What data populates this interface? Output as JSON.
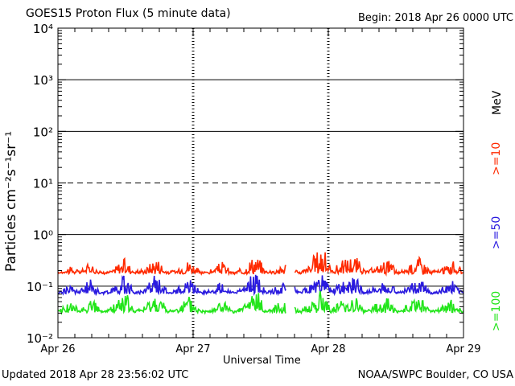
{
  "header": {
    "title": "GOES15 Proton Flux (5 minute data)",
    "begin": "Begin: 2018 Apr 26 0000 UTC"
  },
  "footer": {
    "updated": "Updated 2018 Apr 28 23:56:02 UTC",
    "credit": "NOAA/SWPC Boulder, CO USA"
  },
  "chart_data": {
    "type": "line",
    "title": "GOES15 Proton Flux (5 minute data)",
    "xlabel": "Universal Time",
    "ylabel": "Particles cm⁻²s⁻¹sr⁻¹",
    "y_scale": "log",
    "ylim": [
      0.01,
      10000
    ],
    "y_ticks": [
      "10⁻²",
      "10⁻¹",
      "10⁰",
      "10¹",
      "10²",
      "10³",
      "10⁴"
    ],
    "x_ticks": [
      "Apr 26",
      "Apr 27",
      "Apr 28",
      "Apr 29"
    ],
    "threshold_line": 10,
    "data_gap": [
      "2018-04-27T16:30",
      "2018-04-27T18:00"
    ],
    "energy_unit": "MeV",
    "series": [
      {
        "name": ">=10",
        "color": "#ff2a00",
        "baseline": 0.17,
        "values": [
          0.17,
          0.22,
          0.18,
          0.27,
          0.16,
          0.19,
          0.31,
          0.18,
          0.2,
          0.33,
          0.17,
          0.2,
          0.3,
          0.17,
          0.19,
          0.26,
          0.16,
          0.22,
          0.36,
          0.18,
          0.2,
          0.28,
          0.17,
          0.24,
          0.52,
          0.19,
          0.28,
          0.36,
          0.18,
          0.21,
          0.3,
          0.17,
          0.22,
          0.33,
          0.18,
          0.2,
          0.27,
          0.17
        ]
      },
      {
        "name": ">=50",
        "color": "#2a1adf",
        "baseline": 0.07,
        "values": [
          0.07,
          0.1,
          0.075,
          0.12,
          0.065,
          0.085,
          0.14,
          0.07,
          0.09,
          0.15,
          0.07,
          0.085,
          0.13,
          0.07,
          0.08,
          0.11,
          0.065,
          0.09,
          0.16,
          0.07,
          0.09,
          0.12,
          0.07,
          0.1,
          0.16,
          0.08,
          0.11,
          0.14,
          0.07,
          0.09,
          0.12,
          0.07,
          0.09,
          0.13,
          0.07,
          0.085,
          0.11,
          0.07
        ]
      },
      {
        "name": ">=100",
        "color": "#22e51a",
        "baseline": 0.03,
        "values": [
          0.03,
          0.045,
          0.033,
          0.055,
          0.028,
          0.038,
          0.07,
          0.03,
          0.04,
          0.065,
          0.03,
          0.037,
          0.055,
          0.03,
          0.035,
          0.05,
          0.028,
          0.04,
          0.075,
          0.03,
          0.04,
          0.05,
          0.03,
          0.045,
          0.07,
          0.035,
          0.05,
          0.06,
          0.03,
          0.04,
          0.055,
          0.03,
          0.04,
          0.06,
          0.03,
          0.037,
          0.05,
          0.03
        ]
      }
    ]
  }
}
